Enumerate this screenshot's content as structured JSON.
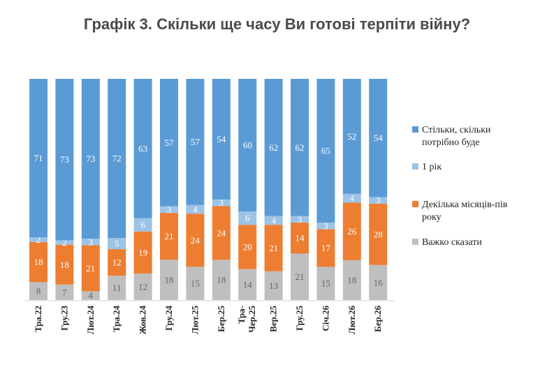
{
  "chart_data": {
    "type": "bar",
    "stacked": true,
    "title": "Графік 3. Скільки ще часу Ви готові терпіти війну?",
    "categories": [
      "Тра.22",
      "Гру.23",
      "Лют.24",
      "Тра.24",
      "Жов.24",
      "Гру.24",
      "Лют.25",
      "Бер.25",
      "Тра-Чер.25",
      "Вер.25",
      "Гру.25",
      "Січ.26",
      "Лют.26",
      "Бер.26"
    ],
    "series": [
      {
        "name": "Важко сказати",
        "color": "#bfbfbf",
        "label_color": "#666666",
        "values": [
          8,
          7,
          4,
          11,
          12,
          18,
          15,
          18,
          14,
          13,
          21,
          15,
          18,
          16
        ]
      },
      {
        "name": "Декілька місяців-пів року",
        "color": "#ed7d31",
        "label_color": "#ffffff",
        "values": [
          18,
          18,
          21,
          12,
          19,
          21,
          24,
          24,
          20,
          21,
          14,
          17,
          26,
          28
        ]
      },
      {
        "name": "1 рік",
        "color": "#9dc3e6",
        "label_color": "#ffffff",
        "values": [
          2,
          2,
          3,
          5,
          6,
          3,
          4,
          3,
          6,
          4,
          3,
          3,
          4,
          3
        ]
      },
      {
        "name": "Стільки, скільки потрібно буде",
        "color": "#5b9bd5",
        "label_color": "#ffffff",
        "values": [
          71,
          73,
          73,
          72,
          63,
          57,
          57,
          54,
          60,
          62,
          62,
          65,
          52,
          54
        ]
      }
    ],
    "legend_order": [
      3,
      2,
      1,
      0
    ],
    "legend_position": "right",
    "ylim": [
      0,
      100
    ],
    "grid": false
  }
}
